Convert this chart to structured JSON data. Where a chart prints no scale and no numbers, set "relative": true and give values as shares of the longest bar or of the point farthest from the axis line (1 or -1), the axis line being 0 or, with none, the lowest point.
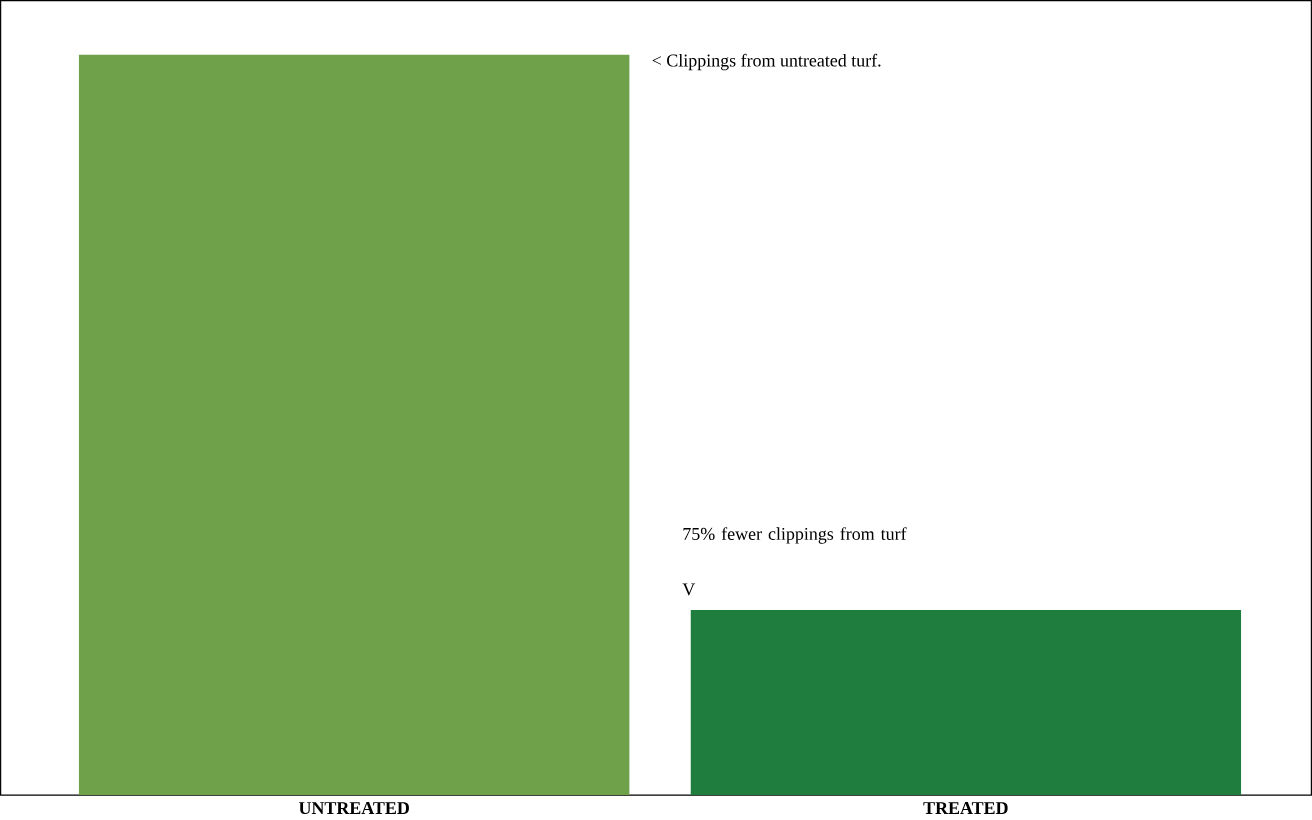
{
  "chart_data": {
    "type": "bar",
    "relative": true,
    "categories": [
      "UNTREATED",
      "TREATED"
    ],
    "values": [
      1,
      0.25
    ],
    "colors": [
      "#6fa04a",
      "#1f7d3d"
    ],
    "annotations": [
      "< Clippings from untreated turf.",
      "75% fewer clippings from turf",
      "V"
    ]
  }
}
